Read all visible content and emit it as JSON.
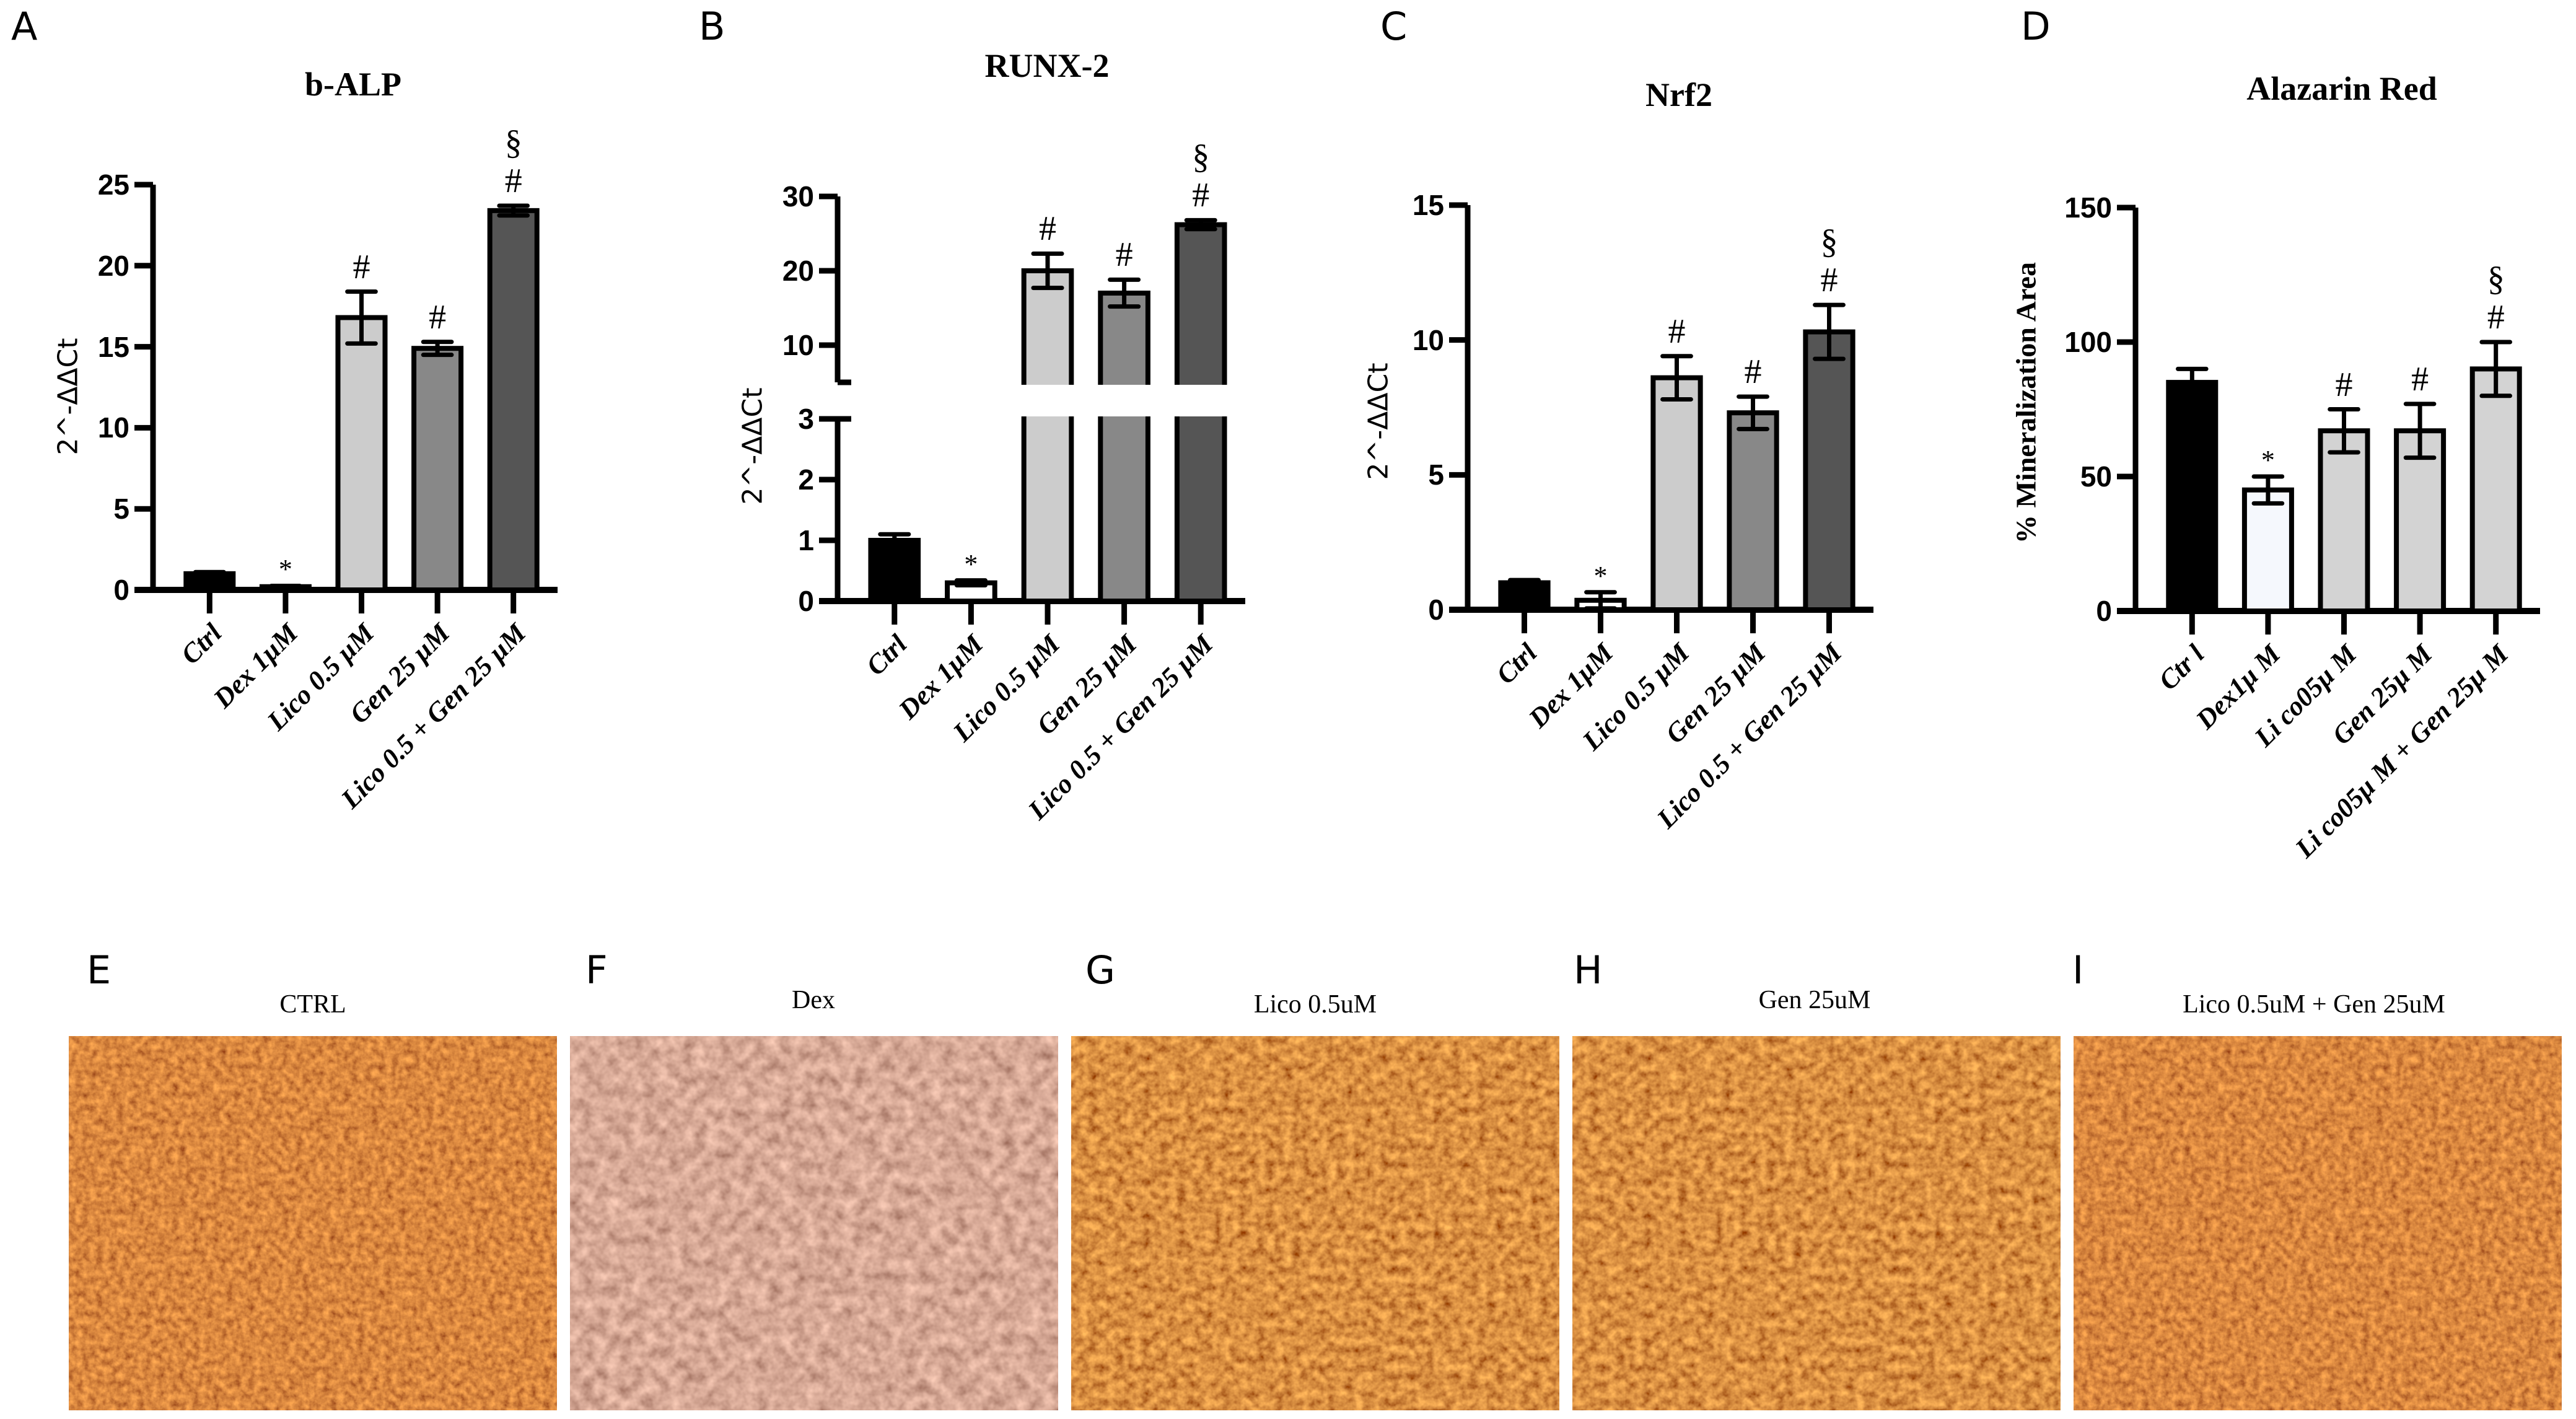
{
  "figure": {
    "panels": {
      "A": {
        "letter": "A",
        "title": "b-ALP",
        "ylabel": "2^-ΔΔCt"
      },
      "B": {
        "letter": "B",
        "title": "RUNX-2",
        "ylabel": "2^-ΔΔCt"
      },
      "C": {
        "letter": "C",
        "title": "Nrf2",
        "ylabel": "2^-ΔΔCt"
      },
      "D": {
        "letter": "D",
        "title": "Alazarin Red",
        "ylabel": "% Mineralization Area"
      }
    },
    "images": [
      {
        "letter": "E",
        "title": "CTRL"
      },
      {
        "letter": "F",
        "title": "Dex"
      },
      {
        "letter": "G",
        "title": "Lico 0.5uM"
      },
      {
        "letter": "H",
        "title": "Gen 25uM"
      },
      {
        "letter": "I",
        "title": "Lico 0.5uM + Gen 25uM"
      }
    ],
    "colors": {
      "ctrl": "#000000",
      "dex": "#ffffff",
      "dex_D": "#f5f8fd",
      "lico": "#cccccc",
      "gen": "#888888",
      "combo": "#555555",
      "D_treated": "#d3d3d3",
      "stain_ctrl": "#8a2c08",
      "stain_dex": "#a4614a"
    }
  },
  "chart_data": [
    {
      "type": "bar",
      "panel": "A",
      "title": "b-ALP",
      "xlabel": "",
      "ylabel": "2^-ΔΔCt",
      "categories": [
        "Ctrl",
        "Dex 1µM",
        "Lico 0.5 µM",
        "Gen 25 µM",
        "Lico 0.5 + Gen 25 µM"
      ],
      "values": [
        1.0,
        0.2,
        16.8,
        14.9,
        23.4
      ],
      "errors": [
        0.1,
        0.05,
        1.6,
        0.4,
        0.3
      ],
      "annotations": [
        "",
        "*",
        "#",
        "#",
        "#§"
      ],
      "ylim": [
        0,
        25
      ],
      "yticks": [
        0,
        5,
        10,
        15,
        20,
        25
      ],
      "grid": false
    },
    {
      "type": "bar",
      "panel": "B",
      "title": "RUNX-2",
      "xlabel": "",
      "ylabel": "2^-ΔΔCt",
      "categories": [
        "Ctrl",
        "Dex 1µM",
        "Lico 0.5 µM",
        "Gen 25 µM",
        "Lico 0.5 + Gen 25 µM"
      ],
      "values": [
        1.0,
        0.3,
        20.0,
        17.0,
        26.2
      ],
      "errors": [
        0.1,
        0.04,
        2.3,
        1.8,
        0.6
      ],
      "annotations": [
        "",
        "*",
        "#",
        "#",
        "#§"
      ],
      "ylim": [
        0,
        30
      ],
      "axis_break": {
        "lower": [
          0,
          3
        ],
        "upper": [
          5,
          30
        ]
      },
      "yticks": [
        0,
        1,
        2,
        3,
        10,
        20,
        30
      ],
      "grid": false
    },
    {
      "type": "bar",
      "panel": "C",
      "title": "Nrf2",
      "xlabel": "",
      "ylabel": "2^-ΔΔCt",
      "categories": [
        "Ctrl",
        "Dex 1µM",
        "Lico 0.5 µM",
        "Gen 25 µM",
        "Lico 0.5 + Gen 25 µM"
      ],
      "values": [
        1.0,
        0.35,
        8.6,
        7.3,
        10.3
      ],
      "errors": [
        0.1,
        0.3,
        0.8,
        0.6,
        1.0
      ],
      "annotations": [
        "",
        "*",
        "#",
        "#",
        "#§"
      ],
      "ylim": [
        0,
        15
      ],
      "yticks": [
        0,
        5,
        10,
        15
      ],
      "grid": false
    },
    {
      "type": "bar",
      "panel": "D",
      "title": "Alazarin Red",
      "xlabel": "",
      "ylabel": "% Mineralization Area",
      "categories": [
        "Ctr l",
        "Dex1µ M",
        "Li co05µ M",
        "Gen 25µ M",
        "Li co05µ M + Gen 25µ M"
      ],
      "values": [
        85,
        45,
        67,
        67,
        90
      ],
      "errors": [
        5,
        5,
        8,
        10,
        10
      ],
      "annotations": [
        "",
        "*",
        "#",
        "#",
        "#§"
      ],
      "ylim": [
        0,
        150
      ],
      "yticks": [
        0,
        50,
        100,
        150
      ],
      "grid": false
    }
  ]
}
